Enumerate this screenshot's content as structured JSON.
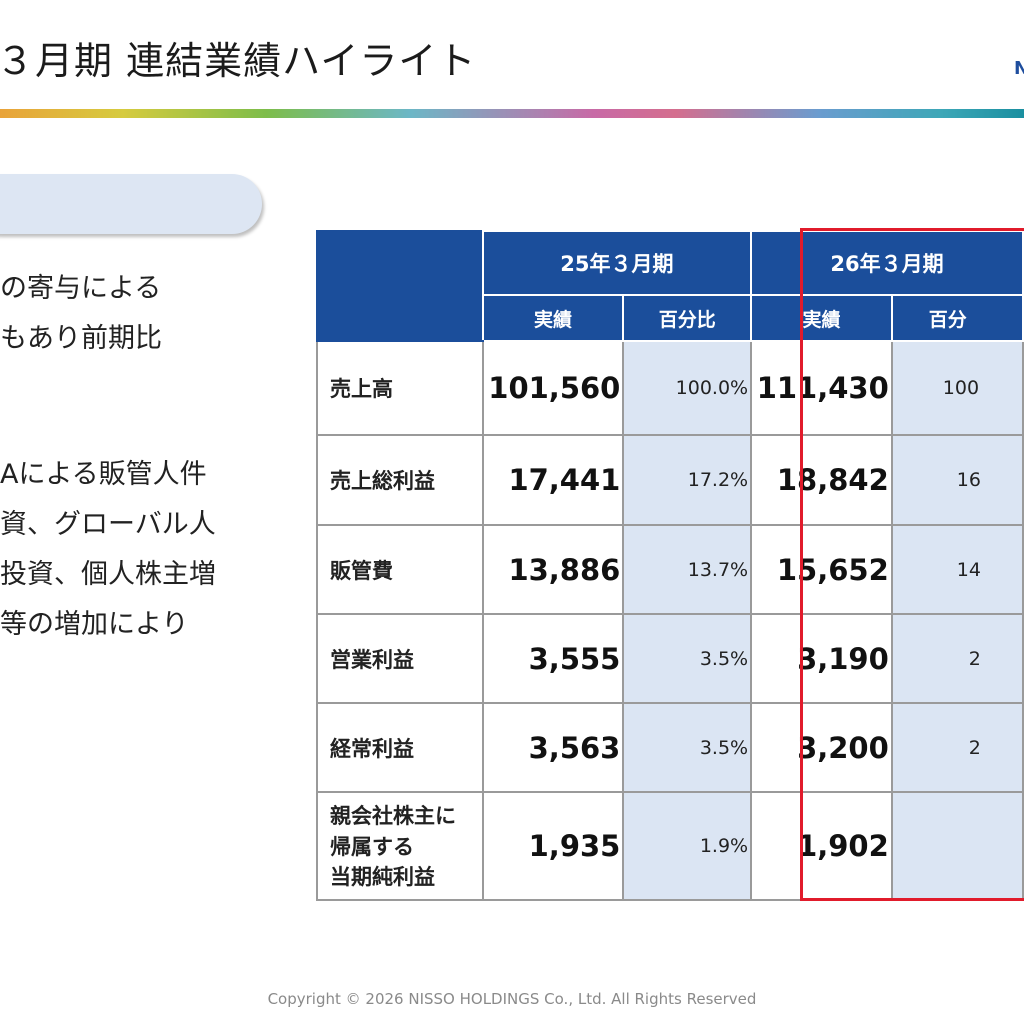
{
  "header": {
    "title": "３月期 連結業績ハイライト",
    "logo_fragment": "N"
  },
  "left_panel": {
    "lines_a": [
      "の寄与による",
      "もあり前期比"
    ],
    "lines_b": [
      "Aによる販管人件",
      "資、グローバル人",
      "投資、個人株主増",
      "等の増加により"
    ]
  },
  "table": {
    "period_headers": [
      "25年３月期",
      "26年３月期"
    ],
    "sub_headers": [
      "実績",
      "百分比",
      "実績",
      "百分"
    ],
    "rows": [
      {
        "label": "売上高",
        "v25": "101,560",
        "p25": "100.0%",
        "v26": "111,430",
        "p26": "100"
      },
      {
        "label": "売上総利益",
        "v25": "17,441",
        "p25": "17.2%",
        "v26": "18,842",
        "p26": "16"
      },
      {
        "label": "販管費",
        "v25": "13,886",
        "p25": "13.7%",
        "v26": "15,652",
        "p26": "14"
      },
      {
        "label": "営業利益",
        "v25": "3,555",
        "p25": "3.5%",
        "v26": "3,190",
        "p26": "2"
      },
      {
        "label": "経常利益",
        "v25": "3,563",
        "p25": "3.5%",
        "v26": "3,200",
        "p26": "2"
      },
      {
        "label_lines": [
          "親会社株主に",
          "帰属する",
          "当期純利益"
        ],
        "v25": "1,935",
        "p25": "1.9%",
        "v26": "1,902",
        "p26": ""
      }
    ]
  },
  "colors": {
    "header_blue": "#1b4e9b",
    "pct_shade": "#dbe5f3",
    "highlight_red": "#e11b2b"
  },
  "footer": {
    "copyright": "Copyright © 2026 NISSO HOLDINGS Co., Ltd. All Rights Reserved"
  }
}
